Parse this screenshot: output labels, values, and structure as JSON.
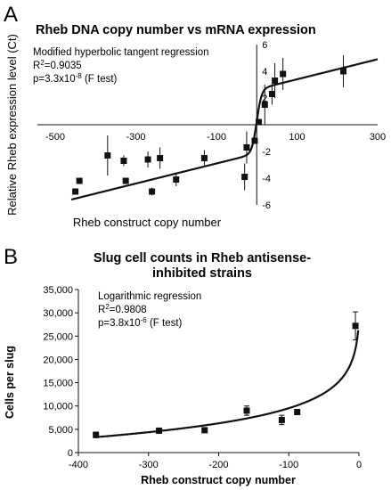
{
  "chart_data": [
    {
      "type": "scatter",
      "panel": "A",
      "title": "Rheb DNA copy number vs mRNA expression",
      "xlabel": "Rheb construct copy number",
      "ylabel": "Relative Rheb expression level (Ct)",
      "xlim": [
        -500,
        300
      ],
      "ylim": [
        -6,
        6
      ],
      "xticks": [
        "-500",
        "-300",
        "-100",
        "100",
        "300"
      ],
      "yticks": [
        "6",
        "4",
        "2",
        "-2",
        "-4",
        "-6"
      ],
      "annotation": {
        "line1": "Modified hyperbolic tangent regression",
        "r2_prefix": "R",
        "r2_sup": "2",
        "r2_value": "=0.9035",
        "p_prefix": "p=3.3x10",
        "p_exp": "-8",
        "p_suffix": " (F test)"
      },
      "points": [
        {
          "x": -450,
          "y": -5.0,
          "err": 0
        },
        {
          "x": -440,
          "y": -4.2,
          "err": 0
        },
        {
          "x": -370,
          "y": -2.3,
          "err": 1.5
        },
        {
          "x": -330,
          "y": -2.7,
          "err": 0.4
        },
        {
          "x": -325,
          "y": -4.2,
          "err": 0
        },
        {
          "x": -270,
          "y": -2.6,
          "err": 0.6
        },
        {
          "x": -260,
          "y": -5.0,
          "err": 0.3
        },
        {
          "x": -240,
          "y": -2.5,
          "err": 0.8
        },
        {
          "x": -200,
          "y": -4.1,
          "err": 0.5
        },
        {
          "x": -130,
          "y": -2.5,
          "err": 0.6
        },
        {
          "x": -30,
          "y": -3.9,
          "err": 1.0
        },
        {
          "x": -25,
          "y": -1.7,
          "err": 1.2
        },
        {
          "x": -5,
          "y": -1.2,
          "err": 0
        },
        {
          "x": 5,
          "y": 0.2,
          "err": 0
        },
        {
          "x": 20,
          "y": 1.5,
          "err": 1.5
        },
        {
          "x": 38,
          "y": 2.3,
          "err": 0.8
        },
        {
          "x": 45,
          "y": 3.3,
          "err": 1.3
        },
        {
          "x": 65,
          "y": 3.8,
          "err": 1.2
        },
        {
          "x": 215,
          "y": 4.0,
          "err": 1.2
        }
      ],
      "fit": "modified hyperbolic tangent",
      "marker_color": "#111111"
    },
    {
      "type": "scatter",
      "panel": "B",
      "title_line1": "Slug cell counts in Rheb antisense-",
      "title_line2": "inhibited strains",
      "xlabel": "Rheb construct copy number",
      "ylabel": "Cells per slug",
      "xlim": [
        -400,
        0
      ],
      "ylim": [
        0,
        35000
      ],
      "xticks": [
        "-400",
        "-300",
        "-200",
        "-100",
        "0"
      ],
      "yticks": [
        "35,000",
        "30,000",
        "25,000",
        "20,000",
        "15,000",
        "10,000",
        "5,000",
        "0"
      ],
      "grid": false,
      "annotation": {
        "line1": "Logarithmic regression",
        "r2_prefix": "R",
        "r2_sup": "2",
        "r2_value": "=0.9808",
        "p_prefix": "p=3.8x10",
        "p_exp": "-6",
        "p_suffix": " (F test)"
      },
      "points": [
        {
          "x": -375,
          "y": 3800,
          "err": 600
        },
        {
          "x": -285,
          "y": 4700,
          "err": 300
        },
        {
          "x": -220,
          "y": 4800,
          "err": 300
        },
        {
          "x": -160,
          "y": 9000,
          "err": 1000
        },
        {
          "x": -110,
          "y": 7000,
          "err": 1000
        },
        {
          "x": -88,
          "y": 8700,
          "err": 400
        },
        {
          "x": -5,
          "y": 27200,
          "err": 3000
        }
      ],
      "fit": "logarithmic",
      "marker_color": "#111111"
    }
  ]
}
